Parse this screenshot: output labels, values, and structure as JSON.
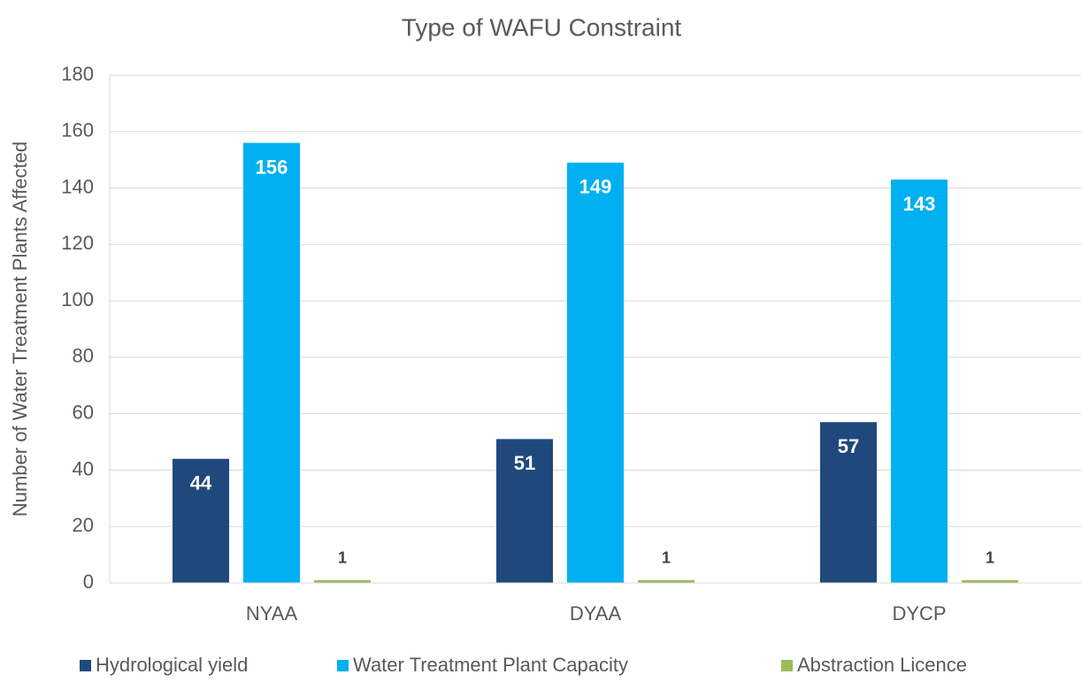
{
  "chart_data": {
    "type": "bar",
    "title": "Type of WAFU Constraint",
    "y_label": "Number of Water Treatment Plants Affected",
    "categories": [
      "NYAA",
      "DYAA",
      "DYCP"
    ],
    "series": [
      {
        "name": "Hydrological yield",
        "color": "#1f497d",
        "values": [
          44,
          51,
          57
        ]
      },
      {
        "name": "Water Treatment Plant Capacity",
        "color": "#00b0f0",
        "values": [
          156,
          149,
          143
        ]
      },
      {
        "name": "Abstraction Licence",
        "color": "#9bbb59",
        "values": [
          1,
          1,
          1
        ]
      }
    ],
    "ylim": [
      0,
      180
    ],
    "yticks": [
      0,
      20,
      40,
      60,
      80,
      100,
      120,
      140,
      160,
      180
    ],
    "grid": true,
    "legend": "bottom",
    "data_labels": true
  }
}
